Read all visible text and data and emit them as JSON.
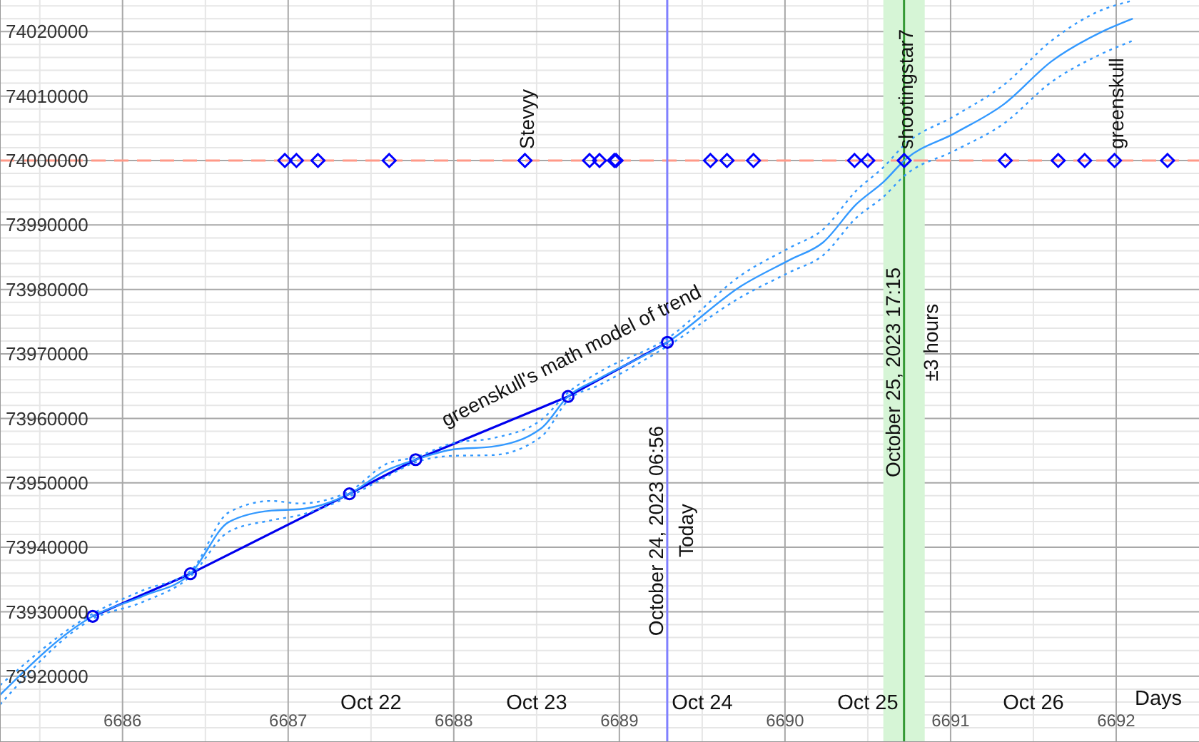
{
  "chart_data": {
    "type": "line",
    "xlabel": "Days",
    "xlim": [
      6685.26,
      6692.5
    ],
    "ylim": [
      73909800,
      74024900
    ],
    "xticks": [
      6686,
      6687,
      6688,
      6689,
      6690,
      6691,
      6692
    ],
    "x2lim": [
      "2023-10-20T06:14",
      "2023-10-27T12:00"
    ],
    "x2ticks": [
      {
        "value": "2023-10-20T12:00",
        "label": null
      },
      {
        "value": "2023-10-21T12:00",
        "label": null
      },
      {
        "value": "2023-10-22T12:00",
        "label": "Oct 22"
      },
      {
        "value": "2023-10-23T12:00",
        "label": "Oct 23"
      },
      {
        "value": "2023-10-24T12:00",
        "label": "Oct 24"
      },
      {
        "value": "2023-10-25T12:00",
        "label": "Oct 25"
      },
      {
        "value": "2023-10-26T12:00",
        "label": "Oct 26"
      }
    ],
    "yticks": [
      {
        "value": 73912000,
        "label": null
      },
      {
        "value": 73914000,
        "label": null
      },
      {
        "value": 73916000,
        "label": null
      },
      {
        "value": 73918000,
        "label": null
      },
      73920000,
      {
        "value": 73922000,
        "label": null
      },
      {
        "value": 73924000,
        "label": null
      },
      {
        "value": 73926000,
        "label": null
      },
      {
        "value": 73928000,
        "label": null
      },
      73930000,
      {
        "value": 73932000,
        "label": null
      },
      {
        "value": 73934000,
        "label": null
      },
      {
        "value": 73936000,
        "label": null
      },
      {
        "value": 73938000,
        "label": null
      },
      73940000,
      {
        "value": 73942000,
        "label": null
      },
      {
        "value": 73944000,
        "label": null
      },
      {
        "value": 73946000,
        "label": null
      },
      {
        "value": 73948000,
        "label": null
      },
      73950000,
      {
        "value": 73952000,
        "label": null
      },
      {
        "value": 73954000,
        "label": null
      },
      {
        "value": 73956000,
        "label": null
      },
      {
        "value": 73958000,
        "label": null
      },
      73960000,
      {
        "value": 73962000,
        "label": null
      },
      {
        "value": 73964000,
        "label": null
      },
      {
        "value": 73966000,
        "label": null
      },
      {
        "value": 73968000,
        "label": null
      },
      73970000,
      {
        "value": 73972000,
        "label": null
      },
      {
        "value": 73974000,
        "label": null
      },
      {
        "value": 73976000,
        "label": null
      },
      {
        "value": 73978000,
        "label": null
      },
      73980000,
      {
        "value": 73982000,
        "label": null
      },
      {
        "value": 73984000,
        "label": null
      },
      {
        "value": 73986000,
        "label": null
      },
      {
        "value": 73988000,
        "label": null
      },
      73990000,
      {
        "value": 73992000,
        "label": null
      },
      {
        "value": 73994000,
        "label": null
      },
      {
        "value": 73996000,
        "label": null
      },
      {
        "value": 73998000,
        "label": null
      },
      74000000,
      {
        "value": 74002000,
        "label": null
      },
      {
        "value": 74004000,
        "label": null
      },
      {
        "value": 74006000,
        "label": null
      },
      {
        "value": 74008000,
        "label": null
      },
      74010000,
      {
        "value": 74012000,
        "label": null
      },
      {
        "value": 74014000,
        "label": null
      },
      {
        "value": 74016000,
        "label": null
      },
      {
        "value": 74018000,
        "label": null
      },
      74020000,
      {
        "value": 74022000,
        "label": null
      },
      {
        "value": 74024000,
        "label": null
      }
    ],
    "grid": true,
    "series": [
      {
        "color": "#0000ee",
        "marker": "circle",
        "x": [
          6685.82,
          6686.41,
          6687.37,
          6687.77,
          6688.69,
          6689.29
        ],
        "values": [
          73929300,
          73935900,
          73948300,
          73953600,
          73963400,
          73971800
        ]
      },
      {
        "color": "#3399ff",
        "marker": "none",
        "x": [
          6685.26,
          6685.82,
          6686.12,
          6686.41,
          6686.64,
          6686.9,
          6687.07,
          6687.37,
          6687.59,
          6687.77,
          6688,
          6688.23,
          6688.53,
          6688.69,
          6688.88,
          6689.29,
          6689.74,
          6690.03,
          6690.23,
          6690.43,
          6690.6,
          6690.72,
          6691.03,
          6691.32,
          6691.61,
          6691.9,
          6692.1
        ],
        "values": [
          73917100,
          73929300,
          73932400,
          73935900,
          73943900,
          73945700,
          73945900,
          73948300,
          73951900,
          73953600,
          73955200,
          73955600,
          73958500,
          73963400,
          73966200,
          73971800,
          73980600,
          73984600,
          73987300,
          73993200,
          73996800,
          74000000,
          74004300,
          74008700,
          74015400,
          74019800,
          74022000
        ]
      },
      {
        "color": "#3399ff",
        "marker": "none",
        "line_style": "dotted",
        "x": [
          6685.26,
          6685.82,
          6686.12,
          6686.41,
          6686.64,
          6686.9,
          6687.07,
          6687.37,
          6687.59,
          6687.77,
          6688,
          6688.23,
          6688.53,
          6688.69,
          6688.88,
          6689.29,
          6689.74,
          6690.03,
          6690.23,
          6690.43,
          6690.6,
          6690.72,
          6691.03,
          6691.32,
          6691.61,
          6691.9,
          6692.1
        ],
        "values": [
          73915600,
          73928900,
          73931500,
          73935500,
          73942400,
          73944200,
          73945000,
          73947900,
          73950900,
          73953200,
          73954200,
          73954300,
          73957200,
          73962800,
          73965200,
          73971200,
          73978900,
          73982700,
          73985300,
          73991100,
          73994500,
          73997600,
          74001600,
          74005700,
          74012200,
          74016400,
          74018600
        ]
      },
      {
        "color": "#3399ff",
        "marker": "none",
        "line_style": "dotted",
        "x": [
          6685.26,
          6685.82,
          6686.12,
          6686.41,
          6686.64,
          6686.9,
          6687.07,
          6687.37,
          6687.59,
          6687.77,
          6688,
          6688.23,
          6688.53,
          6688.69,
          6688.88,
          6689.29,
          6689.74,
          6690.03,
          6690.23,
          6690.43,
          6690.6,
          6690.72,
          6691.03,
          6691.32,
          6691.61,
          6691.9,
          6692.1
        ],
        "values": [
          73918600,
          73929700,
          73933300,
          73936300,
          73945400,
          73947200,
          73946800,
          73948700,
          73952900,
          73954000,
          73956200,
          73956900,
          73959800,
          73964000,
          73967200,
          73972400,
          73982300,
          73986500,
          73989300,
          73995300,
          73999100,
          74002400,
          74007000,
          74011700,
          74018600,
          74023200,
          74024800
        ]
      },
      {
        "type": "scatter",
        "color": "#0000ff",
        "marker": "diamond",
        "x": [
          6686.98,
          6687.05,
          6687.18,
          6687.61,
          6688.43,
          6688.82,
          6688.88,
          6688.97,
          6688.98,
          6689.55,
          6689.65,
          6689.81,
          6690.42,
          6690.5,
          6690.72,
          6691.33,
          6691.65,
          6691.81,
          6691.99,
          6692.31
        ],
        "values": [
          74000000,
          74000000,
          74000000,
          74000000,
          74000000,
          74000000,
          74000000,
          74000000,
          74000000,
          74000000,
          74000000,
          74000000,
          74000000,
          74000000,
          74000000,
          74000000,
          74000000,
          74000000,
          74000000,
          74000000
        ]
      }
    ],
    "ref_lines": [
      {
        "axis": "y",
        "value": 74000000,
        "color": "#ff9988",
        "line_style": "dashed"
      },
      {
        "axis": "x2",
        "value": "2023-10-24T06:56",
        "label": "October 24, 2023 06:56",
        "color": "#8080ff"
      },
      {
        "axis": "x2",
        "value": "2023-10-25T17:15",
        "label": "October 25, 2023 17:15",
        "color": "#339933"
      }
    ],
    "bands": [
      {
        "axis": "x2",
        "from": "2023-10-25T14:15",
        "to": "2023-10-25T20:15",
        "label": "±3 hours",
        "color": "#d6f5d6"
      }
    ],
    "annotations": [
      "greenskull's math model of trend",
      {
        "text": "Today",
        "x": 6689.29,
        "y": 73942600
      },
      {
        "text": "Stevyy",
        "x": 6688.43,
        "y": 74000000
      },
      {
        "text": "shootingstar7",
        "x": 6690.72,
        "y": 74000000
      },
      {
        "text": "greenskull",
        "x": 6691.99,
        "y": 74000000
      }
    ]
  }
}
